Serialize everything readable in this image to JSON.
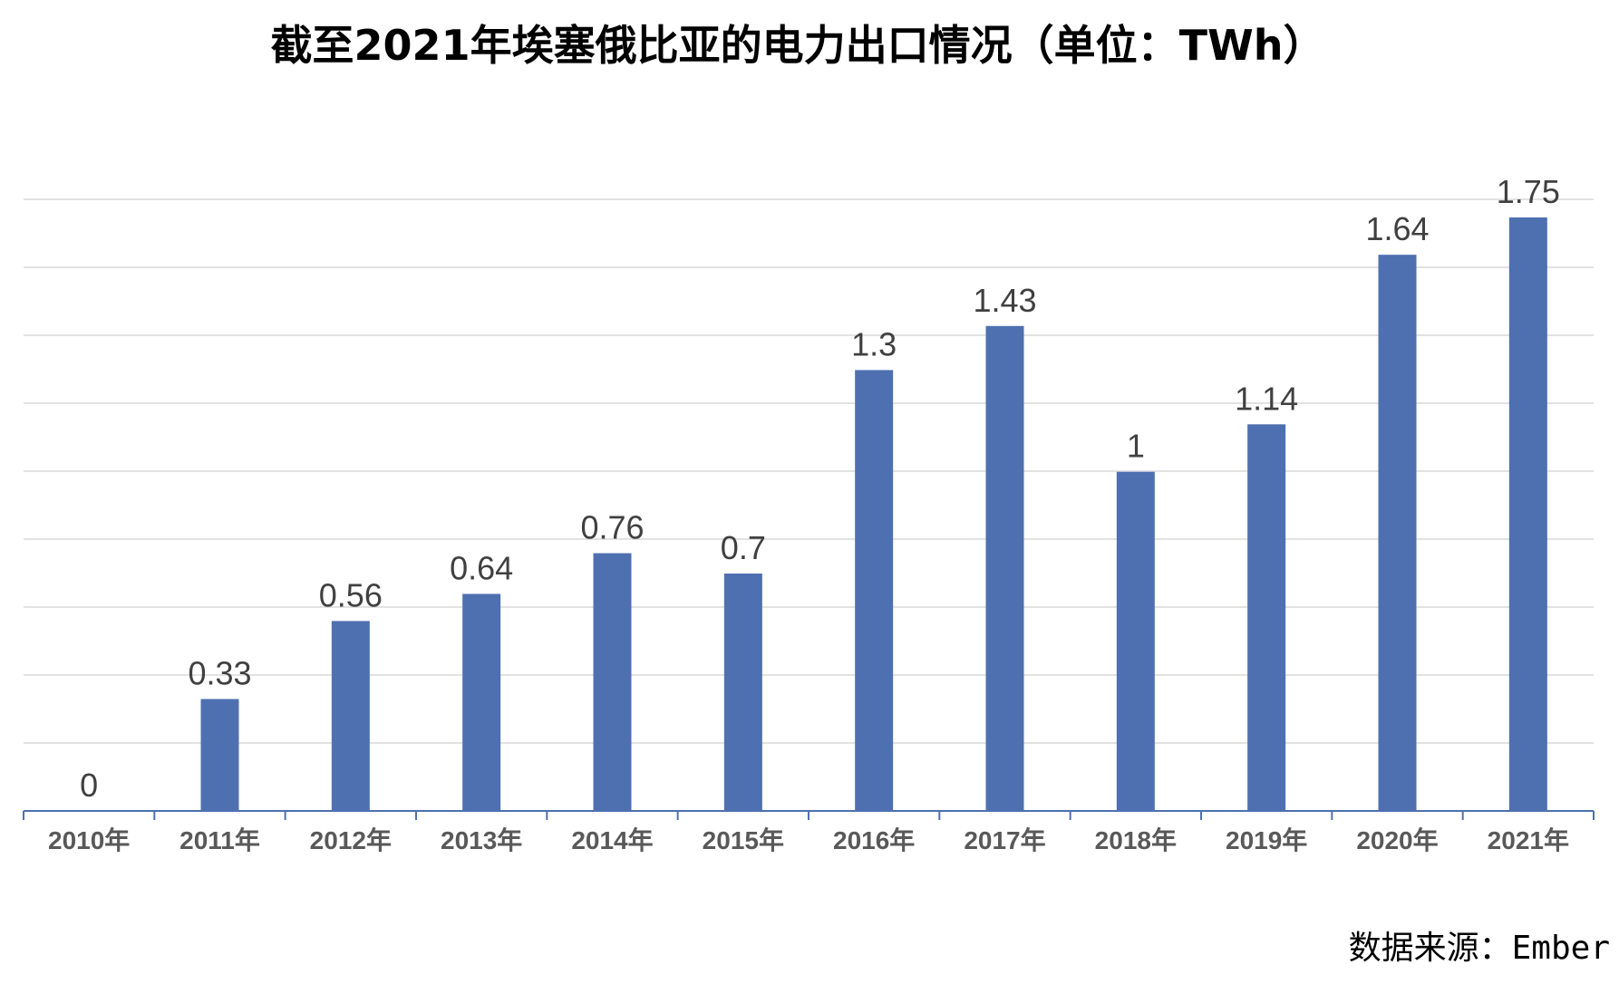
{
  "chart_data": {
    "type": "bar",
    "title": "截至2021年埃塞俄比亚的电力出口情况（单位：TWh）",
    "categories": [
      "2010年",
      "2011年",
      "2012年",
      "2013年",
      "2014年",
      "2015年",
      "2016年",
      "2017年",
      "2018年",
      "2019年",
      "2020年",
      "2021年"
    ],
    "values": [
      0,
      0.33,
      0.56,
      0.64,
      0.76,
      0.7,
      1.3,
      1.43,
      1,
      1.14,
      1.64,
      1.75
    ],
    "value_labels": [
      "0",
      "0.33",
      "0.56",
      "0.64",
      "0.76",
      "0.7",
      "1.3",
      "1.43",
      "1",
      "1.14",
      "1.64",
      "1.75"
    ],
    "xlabel": "",
    "ylabel": "",
    "ylim": [
      0,
      1.8
    ],
    "grid": true,
    "gridline_count": 9,
    "bar_color": "#4e70b0",
    "gridline_color": "#d9d9d9",
    "axis_color": "#4e70b0",
    "source": "数据来源：Ember"
  }
}
